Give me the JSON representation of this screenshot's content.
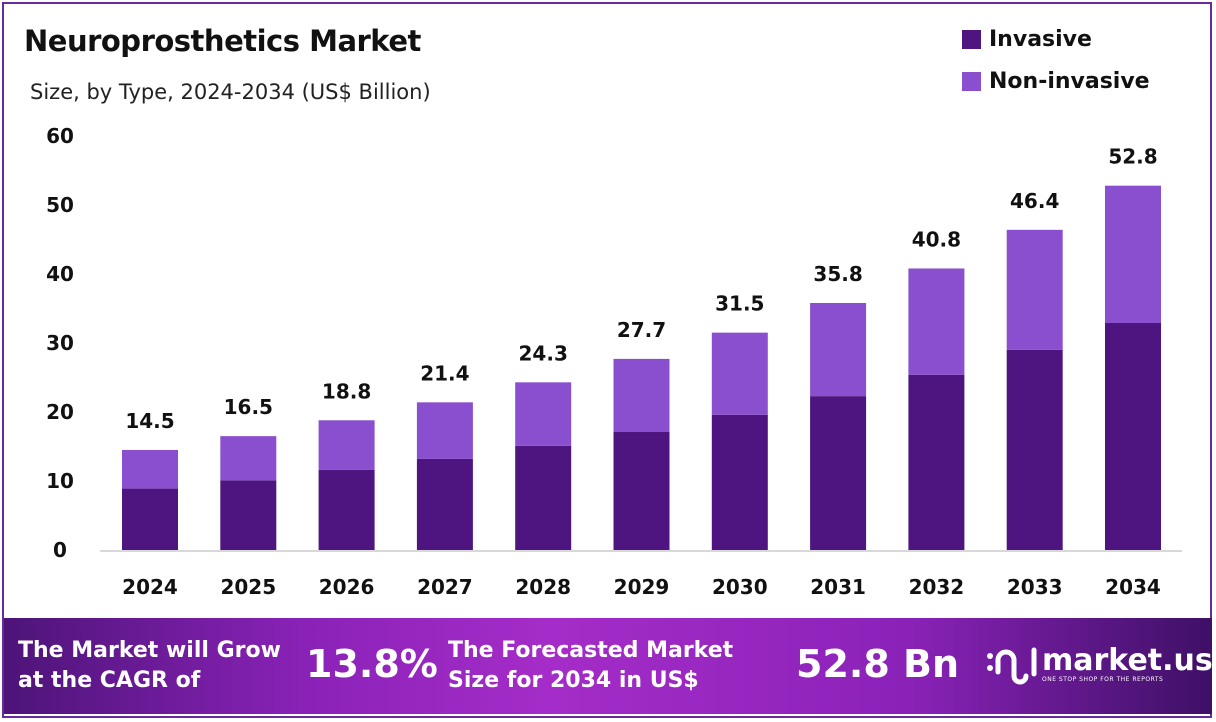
{
  "header": {
    "title": "Neuroprosthetics Market",
    "subtitle": "Size, by Type, 2024-2034 (US$ Billion)"
  },
  "colors": {
    "invasive": "#4e1580",
    "non_invasive": "#8a4fcf"
  },
  "chart_data": {
    "type": "bar",
    "stacked": true,
    "title": "Neuroprosthetics Market",
    "subtitle": "Size, by Type, 2024-2034 (US$ Billion)",
    "categories": [
      "2024",
      "2025",
      "2026",
      "2027",
      "2028",
      "2029",
      "2030",
      "2031",
      "2032",
      "2033",
      "2034"
    ],
    "series": [
      {
        "name": "Invasive",
        "values": [
          8.9,
          10.1,
          11.6,
          13.2,
          15.1,
          17.1,
          19.6,
          22.3,
          25.4,
          29.0,
          32.9
        ]
      },
      {
        "name": "Non-invasive",
        "values": [
          5.6,
          6.4,
          7.2,
          8.2,
          9.2,
          10.6,
          11.9,
          13.5,
          15.4,
          17.4,
          19.9
        ]
      }
    ],
    "totals": [
      "14.5",
      "16.5",
      "18.8",
      "21.4",
      "24.3",
      "27.7",
      "31.5",
      "35.8",
      "40.8",
      "46.4",
      "52.8"
    ],
    "yticks": [
      "0",
      "10",
      "20",
      "30",
      "40",
      "50",
      "60"
    ],
    "ylim": [
      0,
      60
    ],
    "grid": false,
    "legend": "top-right"
  },
  "footer": {
    "cagr_label": [
      "The Market will Grow",
      "at the CAGR of"
    ],
    "cagr_value": "13.8%",
    "forecast_label": [
      "The Forecasted Market",
      "Size for 2034 in US$"
    ],
    "forecast_value": "52.8 Bn",
    "logo_name": "market.us",
    "logo_tagline": "ONE STOP SHOP FOR THE REPORTS"
  }
}
